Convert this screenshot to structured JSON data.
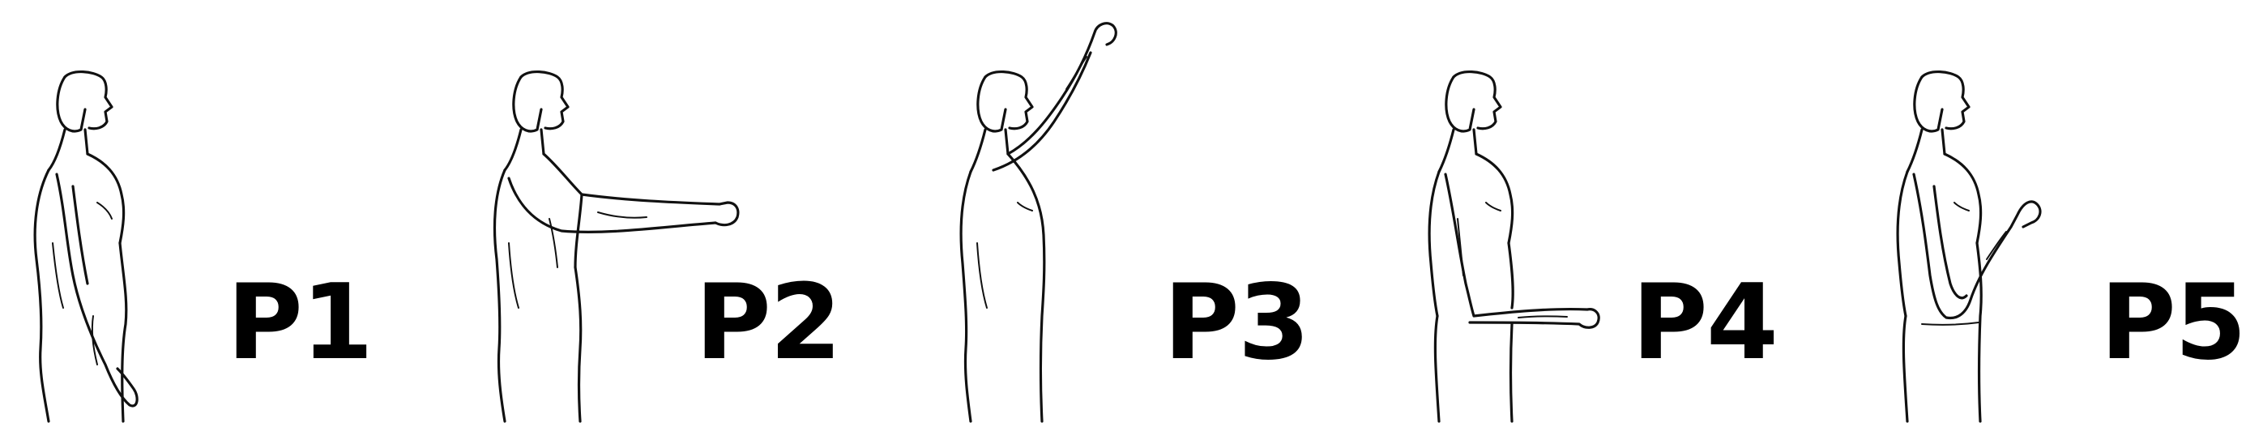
{
  "panels": [
    {
      "id": "p1",
      "label": "P1",
      "pose": "arm-down-at-side"
    },
    {
      "id": "p2",
      "label": "P2",
      "pose": "arm-forward-horizontal"
    },
    {
      "id": "p3",
      "label": "P3",
      "pose": "arm-raised-overhead"
    },
    {
      "id": "p4",
      "label": "P4",
      "pose": "elbow-flexed-forearm-forward"
    },
    {
      "id": "p5",
      "label": "P5",
      "pose": "elbow-flexed-forearm-up"
    }
  ],
  "colors": {
    "line": "#111111",
    "label": "#000000",
    "background": "#ffffff"
  }
}
